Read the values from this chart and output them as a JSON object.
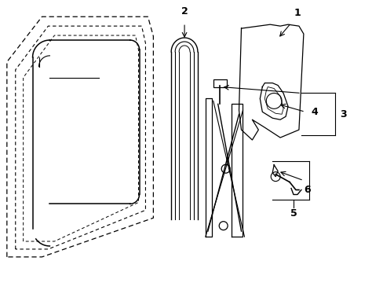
{
  "background_color": "#ffffff",
  "line_color": "#000000",
  "figsize": [
    4.89,
    3.6
  ],
  "dpi": 100,
  "door_outer": {
    "x": [
      0.08,
      0.08,
      0.55,
      1.88,
      1.95,
      1.95,
      0.55,
      0.08
    ],
    "y": [
      0.35,
      2.85,
      3.42,
      3.42,
      3.18,
      0.85,
      0.35,
      0.35
    ]
  },
  "door_inner": {
    "x": [
      0.22,
      0.22,
      0.62,
      1.78,
      1.84,
      1.84,
      0.62,
      0.22
    ],
    "y": [
      0.45,
      2.75,
      3.28,
      3.28,
      3.08,
      0.95,
      0.45,
      0.45
    ]
  }
}
